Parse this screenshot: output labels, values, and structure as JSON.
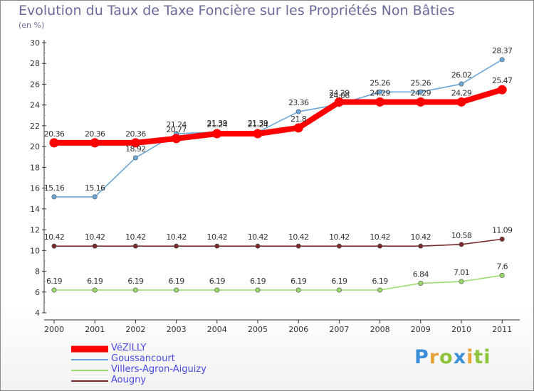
{
  "header": {
    "title": "Evolution du Taux de Taxe Foncière sur les Propriétés Non Bâties",
    "subtitle": "(en %)"
  },
  "logo": {
    "text": "Proxiti",
    "colors": [
      "#3a8fd8",
      "#e8a23a",
      "#8cc43c"
    ]
  },
  "chart_data": {
    "type": "line",
    "title": "Evolution du Taux de Taxe Foncière sur les Propriétés Non Bâties",
    "ylabel": "(en %)",
    "xlabel": "",
    "x": [
      "2000",
      "2001",
      "2002",
      "2003",
      "2004",
      "2005",
      "2006",
      "2007",
      "2008",
      "2009",
      "2010",
      "2011"
    ],
    "ylim": [
      4,
      30
    ],
    "yticks": [
      4,
      6,
      8,
      10,
      12,
      14,
      16,
      18,
      20,
      22,
      24,
      26,
      28,
      30
    ],
    "grid": false,
    "legend_position": "bottom-left",
    "series": [
      {
        "name": "VéZILLY",
        "color": "#ff0000",
        "values": [
          20.36,
          20.36,
          20.36,
          20.77,
          21.24,
          21.24,
          21.8,
          24.29,
          24.29,
          24.29,
          24.29,
          25.47
        ],
        "labels": [
          "20.36",
          "20.36",
          "20.36",
          "20.77",
          "21.24",
          "21.24",
          "21.8",
          "24.29",
          "24.29",
          "24.29",
          "24.29",
          "25.47"
        ]
      },
      {
        "name": "Goussancourt",
        "color": "#6aa6d8",
        "values": [
          15.16,
          15.16,
          18.92,
          21.24,
          21.39,
          21.39,
          23.36,
          24.06,
          25.26,
          25.26,
          26.02,
          28.37
        ],
        "labels": [
          "15.16",
          "15.16",
          "18.92",
          "21.24",
          "21.39",
          "21.39",
          "23.36",
          "24.06",
          "25.26",
          "25.26",
          "26.02",
          "28.37"
        ]
      },
      {
        "name": "Villers-Agron-Aiguizy",
        "color": "#99d86a",
        "values": [
          6.19,
          6.19,
          6.19,
          6.19,
          6.19,
          6.19,
          6.19,
          6.19,
          6.19,
          6.84,
          7.01,
          7.6
        ],
        "labels": [
          "6.19",
          "6.19",
          "6.19",
          "6.19",
          "6.19",
          "6.19",
          "6.19",
          "6.19",
          "6.19",
          "6.84",
          "7.01",
          "7.6"
        ]
      },
      {
        "name": "Aougny",
        "color": "#7a2a2a",
        "values": [
          10.42,
          10.42,
          10.42,
          10.42,
          10.42,
          10.42,
          10.42,
          10.42,
          10.42,
          10.42,
          10.58,
          11.09
        ],
        "labels": [
          "10.42",
          "10.42",
          "10.42",
          "10.42",
          "10.42",
          "10.42",
          "10.42",
          "10.42",
          "10.42",
          "10.42",
          "10.58",
          "11.09"
        ]
      }
    ]
  }
}
